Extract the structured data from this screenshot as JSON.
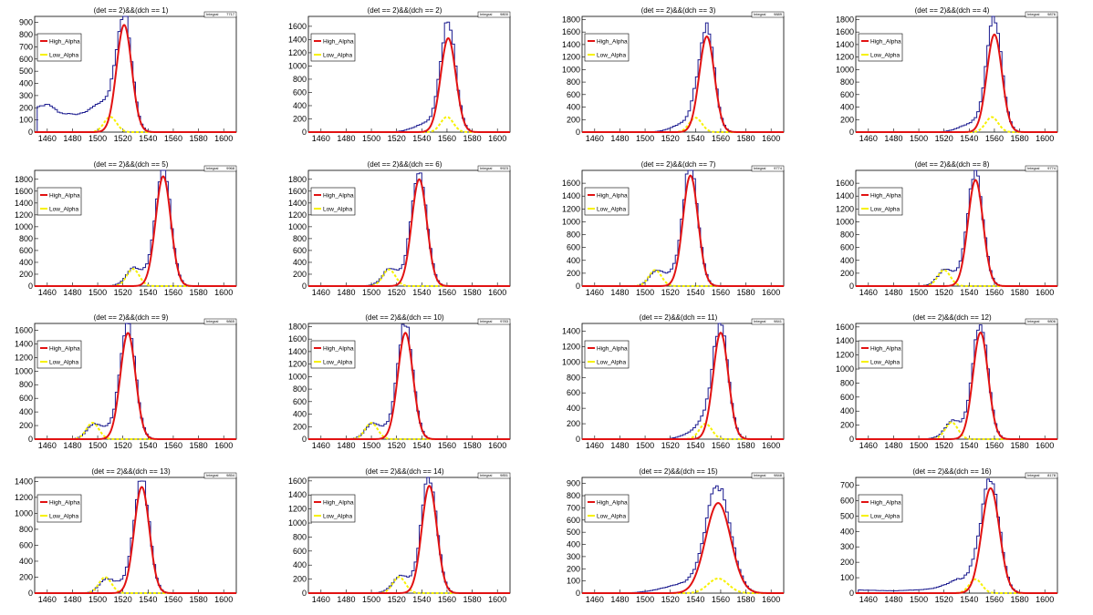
{
  "colors": {
    "histogram": "#1b1b8f",
    "high_alpha": "#e21212",
    "low_alpha": "#f7f100",
    "frame": "#000000",
    "background": "#ffffff"
  },
  "legend": {
    "high_label": "High_Alpha",
    "low_label": "Low_Alpha"
  },
  "stats_label": "Integral",
  "chart_data": [
    {
      "type": "histogram",
      "title": "(det == 2)&&(dch == 1)",
      "xlim": [
        1450,
        1610
      ],
      "ylim": [
        0,
        950
      ],
      "yticks": [
        0,
        100,
        200,
        300,
        400,
        500,
        600,
        700,
        800,
        900
      ],
      "xticks": [
        1460,
        1480,
        1500,
        1520,
        1540,
        1560,
        1580,
        1600
      ],
      "bg": [
        [
          1452,
          200
        ],
        [
          1462,
          230
        ],
        [
          1470,
          160
        ],
        [
          1480,
          140
        ],
        [
          1490,
          135
        ],
        [
          1500,
          160
        ]
      ],
      "high": {
        "mean": 1521,
        "sigma": 6,
        "amp": 880
      },
      "low": {
        "mean": 1510,
        "sigma": 5,
        "amp": 125
      },
      "stats_value": "7717"
    },
    {
      "type": "histogram",
      "title": "(det == 2)&&(dch == 2)",
      "xlim": [
        1450,
        1610
      ],
      "ylim": [
        0,
        1750
      ],
      "yticks": [
        0,
        200,
        400,
        600,
        800,
        1000,
        1200,
        1400,
        1600
      ],
      "xticks": [
        1460,
        1480,
        1500,
        1520,
        1540,
        1560,
        1580,
        1600
      ],
      "high": {
        "mean": 1561,
        "sigma": 6,
        "amp": 1420
      },
      "low": {
        "mean": 1560,
        "sigma": 5,
        "amp": 230
      },
      "stats_value": "9800"
    },
    {
      "type": "histogram",
      "title": "(det == 2)&&(dch == 3)",
      "xlim": [
        1450,
        1610
      ],
      "ylim": [
        0,
        1850
      ],
      "yticks": [
        0,
        200,
        400,
        600,
        800,
        1000,
        1200,
        1400,
        1600,
        1800
      ],
      "xticks": [
        1460,
        1480,
        1500,
        1520,
        1540,
        1560,
        1580,
        1600
      ],
      "high": {
        "mean": 1549,
        "sigma": 6,
        "amp": 1530
      },
      "low": {
        "mean": 1540,
        "sigma": 5,
        "amp": 230
      },
      "stats_value": "9889"
    },
    {
      "type": "histogram",
      "title": "(det == 2)&&(dch == 4)",
      "xlim": [
        1450,
        1610
      ],
      "ylim": [
        0,
        1850
      ],
      "yticks": [
        0,
        200,
        400,
        600,
        800,
        1000,
        1200,
        1400,
        1600,
        1800
      ],
      "xticks": [
        1460,
        1480,
        1500,
        1520,
        1540,
        1560,
        1580,
        1600
      ],
      "high": {
        "mean": 1560,
        "sigma": 6,
        "amp": 1560
      },
      "low": {
        "mean": 1558,
        "sigma": 5,
        "amp": 240
      },
      "stats_value": "9876"
    },
    {
      "type": "histogram",
      "title": "(det == 2)&&(dch == 5)",
      "xlim": [
        1450,
        1610
      ],
      "ylim": [
        0,
        1950
      ],
      "yticks": [
        0,
        200,
        400,
        600,
        800,
        1000,
        1200,
        1400,
        1600,
        1800
      ],
      "xticks": [
        1460,
        1480,
        1500,
        1520,
        1540,
        1560,
        1580,
        1600
      ],
      "high": {
        "mean": 1552,
        "sigma": 6,
        "amp": 1850
      },
      "low": {
        "mean": 1528,
        "sigma": 5,
        "amp": 290
      },
      "stats_value": "9968"
    },
    {
      "type": "histogram",
      "title": "(det == 2)&&(dch == 6)",
      "xlim": [
        1450,
        1610
      ],
      "ylim": [
        0,
        1950
      ],
      "yticks": [
        0,
        200,
        400,
        600,
        800,
        1000,
        1200,
        1400,
        1600,
        1800
      ],
      "xticks": [
        1460,
        1480,
        1500,
        1520,
        1540,
        1560,
        1580,
        1600
      ],
      "high": {
        "mean": 1538,
        "sigma": 6,
        "amp": 1800
      },
      "low": {
        "mean": 1514,
        "sigma": 5,
        "amp": 280
      },
      "stats_value": "9923"
    },
    {
      "type": "histogram",
      "title": "(det == 2)&&(dch == 7)",
      "xlim": [
        1450,
        1610
      ],
      "ylim": [
        0,
        1800
      ],
      "yticks": [
        0,
        200,
        400,
        600,
        800,
        1000,
        1200,
        1400,
        1600
      ],
      "xticks": [
        1460,
        1480,
        1500,
        1520,
        1540,
        1560,
        1580,
        1600
      ],
      "high": {
        "mean": 1536,
        "sigma": 6,
        "amp": 1720
      },
      "low": {
        "mean": 1508,
        "sigma": 5,
        "amp": 250
      },
      "stats_value": "9774"
    },
    {
      "type": "histogram",
      "title": "(det == 2)&&(dch == 8)",
      "xlim": [
        1450,
        1610
      ],
      "ylim": [
        0,
        1800
      ],
      "yticks": [
        0,
        200,
        400,
        600,
        800,
        1000,
        1200,
        1400,
        1600
      ],
      "xticks": [
        1460,
        1480,
        1500,
        1520,
        1540,
        1560,
        1580,
        1600
      ],
      "high": {
        "mean": 1545,
        "sigma": 6,
        "amp": 1650
      },
      "low": {
        "mean": 1520,
        "sigma": 5,
        "amp": 250
      },
      "stats_value": "9774"
    },
    {
      "type": "histogram",
      "title": "(det == 2)&&(dch == 9)",
      "xlim": [
        1450,
        1610
      ],
      "ylim": [
        0,
        1700
      ],
      "yticks": [
        0,
        200,
        400,
        600,
        800,
        1000,
        1200,
        1400,
        1600
      ],
      "xticks": [
        1460,
        1480,
        1500,
        1520,
        1540,
        1560,
        1580,
        1600
      ],
      "high": {
        "mean": 1524,
        "sigma": 6,
        "amp": 1560
      },
      "low": {
        "mean": 1496,
        "sigma": 5,
        "amp": 240
      },
      "stats_value": "9865"
    },
    {
      "type": "histogram",
      "title": "(det == 2)&&(dch == 10)",
      "xlim": [
        1450,
        1610
      ],
      "ylim": [
        0,
        1850
      ],
      "yticks": [
        0,
        200,
        400,
        600,
        800,
        1000,
        1200,
        1400,
        1600,
        1800
      ],
      "xticks": [
        1460,
        1480,
        1500,
        1520,
        1540,
        1560,
        1580,
        1600
      ],
      "high": {
        "mean": 1527,
        "sigma": 6,
        "amp": 1700
      },
      "low": {
        "mean": 1500,
        "sigma": 5,
        "amp": 260
      },
      "stats_value": "9783"
    },
    {
      "type": "histogram",
      "title": "(det == 2)&&(dch == 11)",
      "xlim": [
        1450,
        1610
      ],
      "ylim": [
        0,
        1500
      ],
      "yticks": [
        0,
        200,
        400,
        600,
        800,
        1000,
        1200,
        1400
      ],
      "xticks": [
        1460,
        1480,
        1500,
        1520,
        1540,
        1560,
        1580,
        1600
      ],
      "high": {
        "mean": 1560,
        "sigma": 6,
        "amp": 1380
      },
      "low": {
        "mean": 1548,
        "sigma": 5,
        "amp": 200
      },
      "stats_value": "9841"
    },
    {
      "type": "histogram",
      "title": "(det == 2)&&(dch == 12)",
      "xlim": [
        1450,
        1610
      ],
      "ylim": [
        0,
        1650
      ],
      "yticks": [
        0,
        200,
        400,
        600,
        800,
        1000,
        1200,
        1400,
        1600
      ],
      "xticks": [
        1460,
        1480,
        1500,
        1520,
        1540,
        1560,
        1580,
        1600
      ],
      "high": {
        "mean": 1549,
        "sigma": 6,
        "amp": 1520
      },
      "low": {
        "mean": 1526,
        "sigma": 5,
        "amp": 240
      },
      "stats_value": "9806"
    },
    {
      "type": "histogram",
      "title": "(det == 2)&&(dch == 13)",
      "xlim": [
        1450,
        1610
      ],
      "ylim": [
        0,
        1450
      ],
      "yticks": [
        0,
        200,
        400,
        600,
        800,
        1000,
        1200,
        1400
      ],
      "xticks": [
        1460,
        1480,
        1500,
        1520,
        1540,
        1560,
        1580,
        1600
      ],
      "high": {
        "mean": 1535,
        "sigma": 6,
        "amp": 1330
      },
      "low": {
        "mean": 1506,
        "sigma": 5,
        "amp": 200
      },
      "stats_value": "9854"
    },
    {
      "type": "histogram",
      "title": "(det == 2)&&(dch == 14)",
      "xlim": [
        1450,
        1610
      ],
      "ylim": [
        0,
        1650
      ],
      "yticks": [
        0,
        200,
        400,
        600,
        800,
        1000,
        1200,
        1400,
        1600
      ],
      "xticks": [
        1460,
        1480,
        1500,
        1520,
        1540,
        1560,
        1580,
        1600
      ],
      "high": {
        "mean": 1546,
        "sigma": 6,
        "amp": 1530
      },
      "low": {
        "mean": 1522,
        "sigma": 5,
        "amp": 230
      },
      "stats_value": "9851"
    },
    {
      "type": "histogram",
      "title": "(det == 2)&&(dch == 15)",
      "xlim": [
        1450,
        1610
      ],
      "ylim": [
        0,
        950
      ],
      "yticks": [
        0,
        100,
        200,
        300,
        400,
        500,
        600,
        700,
        800,
        900
      ],
      "xticks": [
        1460,
        1480,
        1500,
        1520,
        1540,
        1560,
        1580,
        1600
      ],
      "high": {
        "mean": 1558,
        "sigma": 10,
        "amp": 740
      },
      "low": {
        "mean": 1558,
        "sigma": 8,
        "amp": 120
      },
      "stats_value": "9848"
    },
    {
      "type": "histogram",
      "title": "(det == 2)&&(dch == 16)",
      "xlim": [
        1450,
        1610
      ],
      "ylim": [
        0,
        750
      ],
      "yticks": [
        0,
        100,
        200,
        300,
        400,
        500,
        600,
        700
      ],
      "xticks": [
        1460,
        1480,
        1500,
        1520,
        1540,
        1560,
        1580,
        1600
      ],
      "bg": [
        [
          1452,
          20
        ],
        [
          1480,
          15
        ],
        [
          1510,
          25
        ],
        [
          1530,
          40
        ]
      ],
      "high": {
        "mean": 1557,
        "sigma": 7,
        "amp": 680
      },
      "low": {
        "mean": 1545,
        "sigma": 5,
        "amp": 90
      },
      "stats_value": "8178"
    }
  ]
}
